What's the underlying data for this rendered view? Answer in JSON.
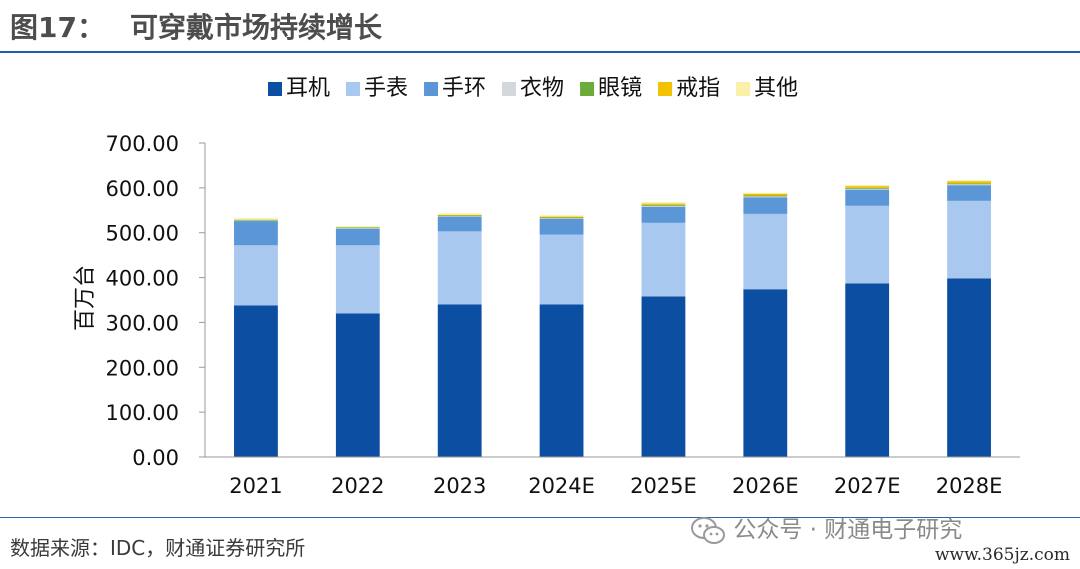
{
  "figure": {
    "number": "图17：",
    "title": "可穿戴市场持续增长"
  },
  "source": "数据来源：IDC，财通证券研究所",
  "watermark": {
    "text": "公众号 · 财通电子研究",
    "url": "www.365jz.com"
  },
  "chart_data": {
    "type": "bar",
    "stacked": true,
    "title": "",
    "xlabel": "",
    "ylabel": "百万台",
    "ylim": [
      0,
      700
    ],
    "yticks": [
      "0.00",
      "100.00",
      "200.00",
      "300.00",
      "400.00",
      "500.00",
      "600.00",
      "700.00"
    ],
    "grid": false,
    "legend_position": "top",
    "categories": [
      "2021",
      "2022",
      "2023",
      "2024E",
      "2025E",
      "2026E",
      "2027E",
      "2028E"
    ],
    "series": [
      {
        "name": "耳机",
        "color": "#0b4ea2",
        "values": [
          338,
          320,
          340,
          340,
          358,
          374,
          387,
          398
        ]
      },
      {
        "name": "手表",
        "color": "#a8c8ef",
        "values": [
          134,
          152,
          163,
          156,
          164,
          168,
          173,
          173
        ]
      },
      {
        "name": "手环",
        "color": "#5b96d6",
        "values": [
          54,
          37,
          33,
          35,
          36,
          37,
          36,
          35
        ]
      },
      {
        "name": "衣物",
        "color": "#d4d8dd",
        "values": [
          2,
          2,
          2,
          2,
          2,
          2,
          2,
          2
        ]
      },
      {
        "name": "眼镜",
        "color": "#6aab3b",
        "values": [
          1,
          1,
          1,
          1,
          2,
          2,
          2,
          2
        ]
      },
      {
        "name": "戒指",
        "color": "#f2c200",
        "values": [
          0,
          0,
          1,
          2,
          3,
          4,
          4,
          5
        ]
      },
      {
        "name": "其他",
        "color": "#fbf0a8",
        "values": [
          4,
          3,
          3,
          3,
          3,
          2,
          2,
          2
        ]
      }
    ]
  }
}
